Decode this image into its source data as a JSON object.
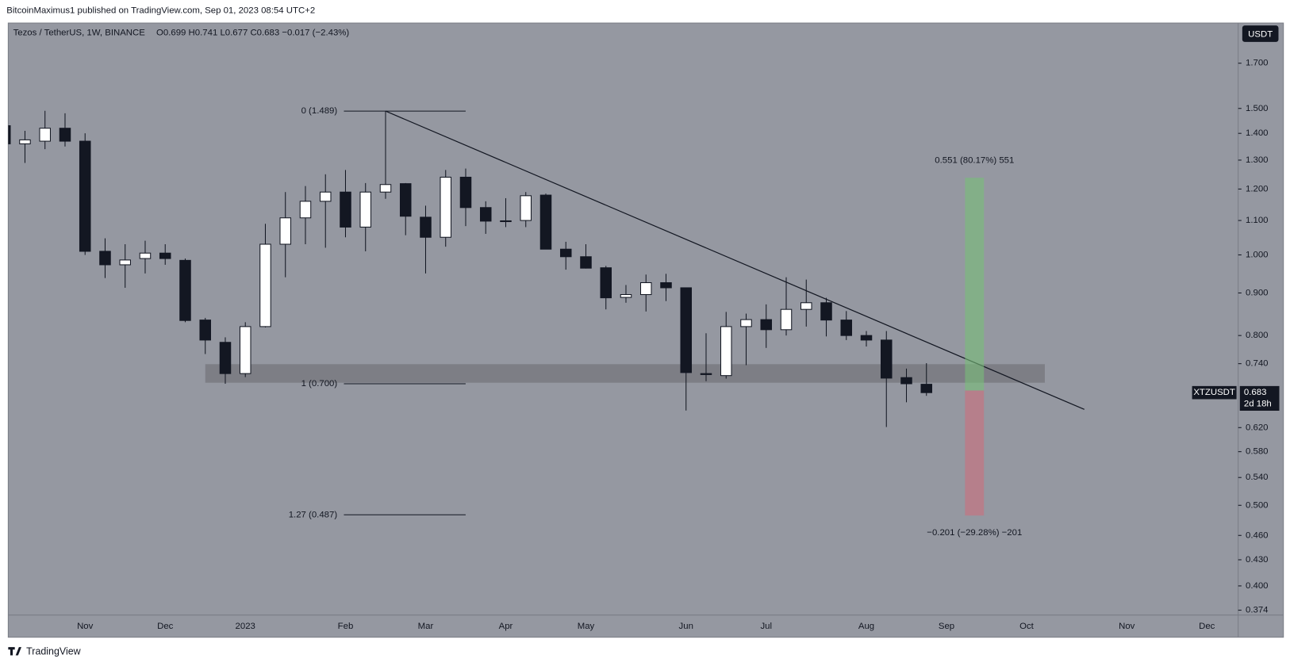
{
  "header": {
    "published": "BitcoinMaximus1 published on TradingView.com, Sep 01, 2023 08:54 UTC+2",
    "brand": "TradingView"
  },
  "chart_data": {
    "type": "candlestick",
    "title": "Tezos / TetherUS, 1W, BINANCE",
    "ohlc": "O0.699  H0.741  L0.677  C0.683  −0.017 (−2.43%)",
    "currency": "USDT",
    "symbol": "XTZUSDT",
    "countdown": "2d 18h",
    "categories": [
      null,
      null,
      null,
      null,
      "Nov",
      null,
      null,
      null,
      "Dec",
      null,
      null,
      null,
      "2023",
      null,
      null,
      null,
      null,
      "Feb",
      null,
      null,
      null,
      "Mar",
      null,
      null,
      null,
      "Apr",
      null,
      null,
      null,
      "May",
      null,
      null,
      null,
      null,
      "Jun",
      null,
      null,
      null,
      "Jul",
      null,
      null,
      null,
      null,
      "Aug",
      null,
      null,
      null,
      "Sep",
      null,
      null,
      null,
      "Oct",
      null,
      null,
      null,
      null,
      "Nov",
      null,
      null,
      null,
      "Dec",
      null
    ],
    "open": [
      1.43,
      1.36,
      1.37,
      1.42,
      1.37,
      1.01,
      0.973,
      0.99,
      1.005,
      0.985,
      0.835,
      0.785,
      0.72,
      0.82,
      1.03,
      1.108,
      1.16,
      1.19,
      1.08,
      1.19,
      1.218,
      1.11,
      1.05,
      1.24,
      1.14,
      1.098,
      1.1,
      1.18,
      1.016,
      0.995,
      0.965,
      0.889,
      0.896,
      0.926,
      0.913,
      0.72,
      0.716,
      0.82,
      0.836,
      0.813,
      0.86,
      0.876,
      0.835,
      0.8,
      0.79,
      0.712,
      0.699,
      null,
      null,
      null,
      null,
      null,
      null,
      null,
      null,
      null,
      null,
      null,
      null,
      null,
      null,
      null
    ],
    "high": [
      1.44,
      1.41,
      1.49,
      1.48,
      1.4,
      1.047,
      1.03,
      1.04,
      1.03,
      0.99,
      0.84,
      0.796,
      0.83,
      1.09,
      1.19,
      1.21,
      1.25,
      1.265,
      1.22,
      1.489,
      1.22,
      1.146,
      1.265,
      1.27,
      1.16,
      1.17,
      1.19,
      1.185,
      1.037,
      1.03,
      0.97,
      0.92,
      0.947,
      0.949,
      0.913,
      0.805,
      0.854,
      0.85,
      0.872,
      0.94,
      0.934,
      0.888,
      0.856,
      0.81,
      0.81,
      0.73,
      0.741,
      null,
      null,
      null,
      null,
      null,
      null,
      null,
      null,
      null,
      null,
      null,
      null,
      null,
      null,
      null
    ],
    "low": [
      1.35,
      1.29,
      1.34,
      1.35,
      1.0,
      0.938,
      0.913,
      0.95,
      0.973,
      0.83,
      0.76,
      0.7,
      0.713,
      0.818,
      0.94,
      1.03,
      1.02,
      1.05,
      1.01,
      1.168,
      1.056,
      0.95,
      1.023,
      1.083,
      1.06,
      1.08,
      1.08,
      1.016,
      0.96,
      0.963,
      0.86,
      0.876,
      0.855,
      0.88,
      0.65,
      0.705,
      0.71,
      0.737,
      0.773,
      0.8,
      0.82,
      0.798,
      0.79,
      0.776,
      0.621,
      0.665,
      0.677,
      null,
      null,
      null,
      null,
      null,
      null,
      null,
      null,
      null,
      null,
      null,
      null,
      null,
      null,
      null
    ],
    "close": [
      1.36,
      1.375,
      1.42,
      1.37,
      1.01,
      0.973,
      0.986,
      1.005,
      0.99,
      0.834,
      0.79,
      0.72,
      0.82,
      1.03,
      1.108,
      1.16,
      1.19,
      1.08,
      1.19,
      1.215,
      1.113,
      1.05,
      1.24,
      1.14,
      1.098,
      1.099,
      1.178,
      1.016,
      0.995,
      0.964,
      0.888,
      0.896,
      0.926,
      0.913,
      0.722,
      0.718,
      0.82,
      0.836,
      0.813,
      0.86,
      0.876,
      0.835,
      0.8,
      0.79,
      0.711,
      0.7,
      0.683,
      null,
      null,
      null,
      null,
      null,
      null,
      null,
      null,
      null,
      null,
      null,
      null,
      null,
      null,
      null
    ],
    "up_color": "#ffffff",
    "down_color": "#131722",
    "log_scale": true,
    "grid": false,
    "ylim": [
      0.369,
      1.9
    ],
    "yticks": [
      {
        "value": 1.7,
        "label": "1.700"
      },
      {
        "value": 1.5,
        "label": "1.500"
      },
      {
        "value": 1.4,
        "label": "1.400"
      },
      {
        "value": 1.3,
        "label": "1.300"
      },
      {
        "value": 1.2,
        "label": "1.200"
      },
      {
        "value": 1.1,
        "label": "1.100"
      },
      {
        "value": 1.0,
        "label": "1.000"
      },
      {
        "value": 0.9,
        "label": "0.900"
      },
      {
        "value": 0.8,
        "label": "0.800"
      },
      {
        "value": 0.74,
        "label": "0.740"
      },
      {
        "value": 0.62,
        "label": "0.620"
      },
      {
        "value": 0.58,
        "label": "0.580"
      },
      {
        "value": 0.54,
        "label": "0.540"
      },
      {
        "value": 0.5,
        "label": "0.500"
      },
      {
        "value": 0.46,
        "label": "0.460"
      },
      {
        "value": 0.43,
        "label": "0.430"
      },
      {
        "value": 0.4,
        "label": "0.400"
      },
      {
        "value": 0.374,
        "label": "0.374"
      }
    ],
    "fib_levels": [
      {
        "label": "0 (1.489)",
        "value": 1.489
      },
      {
        "label": "1 (0.700)",
        "value": 0.7
      },
      {
        "label": "1.27 (0.487)",
        "value": 0.487
      }
    ],
    "trendline": [
      1.489,
      0.652
    ],
    "zone": [
      0.702,
      0.739
    ],
    "position": {
      "entry": 0.687,
      "target": 1.238,
      "stop": 0.486,
      "target_label": "0.551 (80.17%) 551",
      "stop_label": "−0.201 (−29.28%) −201"
    }
  }
}
